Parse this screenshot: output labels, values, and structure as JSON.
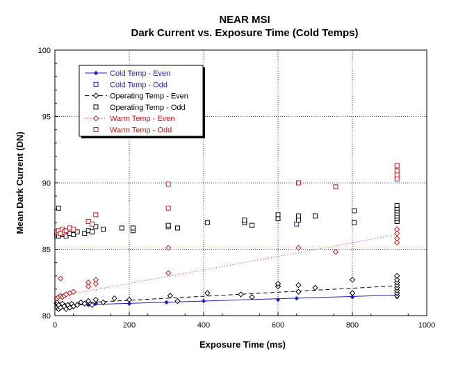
{
  "colors": {
    "cold": "#1f1fbf",
    "operating": "#000000",
    "warm": "#c41a1a",
    "grid": "#2a2ad0"
  },
  "chart_data": {
    "type": "scatter",
    "title": "NEAR MSI",
    "subtitle": "Dark Current vs. Exposure Time (Cold Temps)",
    "xlabel": "Exposure Time (ms)",
    "ylabel": "Mean Dark Current (DN)",
    "xlim": [
      0,
      1000
    ],
    "ylim": [
      80,
      100
    ],
    "xticks": [
      0,
      200,
      400,
      600,
      800,
      1000
    ],
    "yticks": [
      80,
      85,
      90,
      95,
      100
    ],
    "grid": true,
    "legend_position": "top-left",
    "series": [
      {
        "name": "Cold Temp - Even",
        "marker": "diamond-small",
        "line": "solid",
        "color": "#1f1fbf",
        "trend": [
          [
            0,
            80.75
          ],
          [
            920,
            81.55
          ]
        ],
        "points": [
          [
            10,
            80.6
          ],
          [
            10,
            80.9
          ],
          [
            20,
            80.7
          ],
          [
            30,
            80.6
          ],
          [
            90,
            80.8
          ],
          [
            110,
            80.9
          ],
          [
            200,
            80.9
          ],
          [
            300,
            81.0
          ],
          [
            400,
            81.1
          ],
          [
            600,
            81.2
          ],
          [
            650,
            81.3
          ],
          [
            800,
            81.4
          ],
          [
            920,
            81.6
          ],
          [
            920,
            81.4
          ]
        ]
      },
      {
        "name": "Cold Temp - Odd",
        "marker": "square",
        "line": "none",
        "color": "#1f1fbf",
        "points": [
          [
            10,
            86.1
          ],
          [
            20,
            86.2
          ],
          [
            650,
            86.9
          ],
          [
            920,
            87.1
          ]
        ]
      },
      {
        "name": "Operating Temp - Even",
        "marker": "diamond",
        "line": "dashed",
        "color": "#000000",
        "trend": [
          [
            0,
            80.85
          ],
          [
            920,
            82.25
          ]
        ],
        "points": [
          [
            5,
            80.6
          ],
          [
            5,
            80.9
          ],
          [
            5,
            81.0
          ],
          [
            10,
            80.5
          ],
          [
            10,
            80.8
          ],
          [
            15,
            80.6
          ],
          [
            20,
            80.9
          ],
          [
            25,
            80.7
          ],
          [
            30,
            80.5
          ],
          [
            35,
            80.8
          ],
          [
            40,
            80.6
          ],
          [
            45,
            80.9
          ],
          [
            50,
            80.7
          ],
          [
            60,
            80.8
          ],
          [
            70,
            81.0
          ],
          [
            80,
            80.9
          ],
          [
            90,
            81.1
          ],
          [
            100,
            80.8
          ],
          [
            110,
            81.2
          ],
          [
            130,
            81.0
          ],
          [
            160,
            81.3
          ],
          [
            200,
            81.2
          ],
          [
            310,
            81.5
          ],
          [
            330,
            81.1
          ],
          [
            410,
            81.7
          ],
          [
            500,
            81.6
          ],
          [
            530,
            81.4
          ],
          [
            600,
            82.2
          ],
          [
            600,
            82.4
          ],
          [
            655,
            81.8
          ],
          [
            655,
            82.3
          ],
          [
            700,
            82.1
          ],
          [
            800,
            82.7
          ],
          [
            800,
            81.7
          ],
          [
            920,
            81.5
          ],
          [
            920,
            81.7
          ],
          [
            920,
            81.9
          ],
          [
            920,
            82.1
          ],
          [
            920,
            82.3
          ],
          [
            920,
            82.5
          ],
          [
            920,
            82.7
          ],
          [
            920,
            83.0
          ]
        ]
      },
      {
        "name": "Operating Temp - Odd",
        "marker": "square",
        "line": "none",
        "color": "#000000",
        "points": [
          [
            5,
            86.0
          ],
          [
            5,
            86.3
          ],
          [
            10,
            86.0
          ],
          [
            10,
            88.1
          ],
          [
            15,
            86.2
          ],
          [
            20,
            86.1
          ],
          [
            25,
            86.3
          ],
          [
            30,
            86.0
          ],
          [
            40,
            86.2
          ],
          [
            50,
            86.1
          ],
          [
            60,
            86.3
          ],
          [
            80,
            86.2
          ],
          [
            90,
            86.4
          ],
          [
            100,
            86.3
          ],
          [
            110,
            86.7
          ],
          [
            130,
            86.5
          ],
          [
            180,
            86.6
          ],
          [
            210,
            86.4
          ],
          [
            210,
            86.6
          ],
          [
            305,
            86.7
          ],
          [
            305,
            86.8
          ],
          [
            330,
            86.6
          ],
          [
            410,
            87.0
          ],
          [
            510,
            87.0
          ],
          [
            510,
            87.2
          ],
          [
            530,
            86.8
          ],
          [
            600,
            87.3
          ],
          [
            600,
            87.6
          ],
          [
            655,
            87.2
          ],
          [
            655,
            87.5
          ],
          [
            700,
            87.5
          ],
          [
            805,
            87.0
          ],
          [
            805,
            87.9
          ],
          [
            920,
            87.1
          ],
          [
            920,
            87.3
          ],
          [
            920,
            87.5
          ],
          [
            920,
            87.7
          ],
          [
            920,
            87.9
          ],
          [
            920,
            88.1
          ],
          [
            920,
            88.3
          ]
        ]
      },
      {
        "name": "Warm Temp - Even",
        "marker": "diamond",
        "line": "dotted",
        "color": "#c41a1a",
        "trend": [
          [
            0,
            81.4
          ],
          [
            920,
            86.1
          ]
        ],
        "points": [
          [
            5,
            81.3
          ],
          [
            10,
            81.4
          ],
          [
            15,
            81.5
          ],
          [
            20,
            81.4
          ],
          [
            25,
            81.5
          ],
          [
            30,
            81.6
          ],
          [
            40,
            81.7
          ],
          [
            50,
            81.8
          ],
          [
            15,
            82.8
          ],
          [
            90,
            82.2
          ],
          [
            90,
            82.5
          ],
          [
            110,
            82.4
          ],
          [
            110,
            82.7
          ],
          [
            305,
            83.2
          ],
          [
            305,
            85.1
          ],
          [
            655,
            85.1
          ],
          [
            755,
            84.8
          ],
          [
            920,
            85.5
          ],
          [
            920,
            85.8
          ],
          [
            920,
            86.2
          ],
          [
            920,
            86.5
          ]
        ]
      },
      {
        "name": "Warm Temp - Odd",
        "marker": "square",
        "line": "none",
        "color": "#c41a1a",
        "points": [
          [
            5,
            86.3
          ],
          [
            10,
            86.4
          ],
          [
            15,
            86.2
          ],
          [
            20,
            86.5
          ],
          [
            25,
            86.3
          ],
          [
            30,
            86.4
          ],
          [
            40,
            86.6
          ],
          [
            50,
            86.5
          ],
          [
            90,
            87.1
          ],
          [
            100,
            86.9
          ],
          [
            110,
            87.6
          ],
          [
            305,
            88.1
          ],
          [
            305,
            89.9
          ],
          [
            655,
            90.0
          ],
          [
            755,
            89.7
          ],
          [
            920,
            90.3
          ],
          [
            920,
            90.6
          ],
          [
            920,
            90.9
          ],
          [
            920,
            91.3
          ]
        ]
      }
    ]
  }
}
